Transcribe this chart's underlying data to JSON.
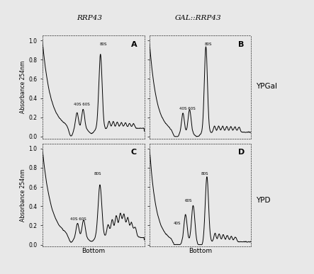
{
  "title_left": "RRP43",
  "title_right": "GAL::RRP43",
  "label_right_top": "YPGal",
  "label_right_bottom": "YPD",
  "ylabel": "Absorbance 254nm",
  "xlabel": "Bottom",
  "ylim": [
    0.0,
    1.0
  ],
  "yticks": [
    0.0,
    0.2,
    0.4,
    0.6,
    0.8,
    1.0
  ],
  "background_color": "#e8e8e8",
  "line_color": "#000000",
  "n_points": 500
}
